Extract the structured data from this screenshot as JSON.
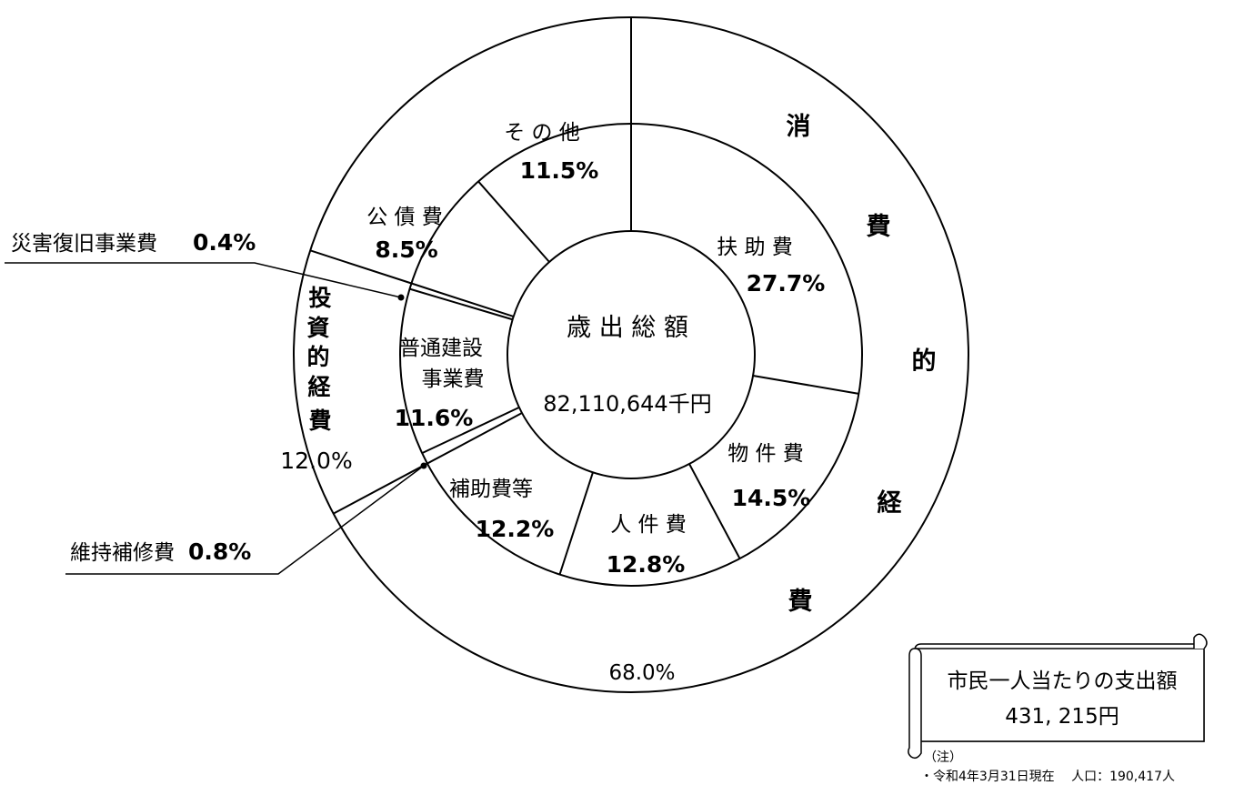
{
  "chart_data": {
    "type": "pie",
    "center_label": {
      "title": "歳 出 総 額",
      "total": "82,110,644千円"
    },
    "inner_ring": [
      {
        "name": "扶 助 費",
        "percent": 27.7,
        "label": "27.7%"
      },
      {
        "name": "物 件 費",
        "percent": 14.5,
        "label": "14.5%"
      },
      {
        "name": "人 件 費",
        "percent": 12.8,
        "label": "12.8%"
      },
      {
        "name": "補助費等",
        "percent": 12.2,
        "label": "12.2%"
      },
      {
        "name": "維持補修費",
        "percent": 0.8,
        "label": "0.8%"
      },
      {
        "name": "普通建設事業費",
        "percent": 11.6,
        "label": "11.6%"
      },
      {
        "name": "災害復旧事業費",
        "percent": 0.4,
        "label": "0.4%"
      },
      {
        "name": "公 債 費",
        "percent": 8.5,
        "label": "8.5%"
      },
      {
        "name": "そ の 他",
        "percent": 11.5,
        "label": "11.5%"
      }
    ],
    "outer_ring": [
      {
        "name": "消費的経費",
        "label": "68.0%",
        "percent": 68.0
      },
      {
        "name": "投資的経費",
        "label": "12.0%",
        "percent": 12.0
      }
    ]
  },
  "callouts": {
    "disaster": {
      "name": "災害復旧事業費",
      "value": "0.4%"
    },
    "maintenance": {
      "name": "維持補修費",
      "value": "0.8%"
    }
  },
  "scroll_box": {
    "line1": "市民一人当たりの支出額",
    "line2": "431, 215円"
  },
  "note": {
    "title": "（注）",
    "text": "・令和4年3月31日現在　 人口：190,417人"
  }
}
